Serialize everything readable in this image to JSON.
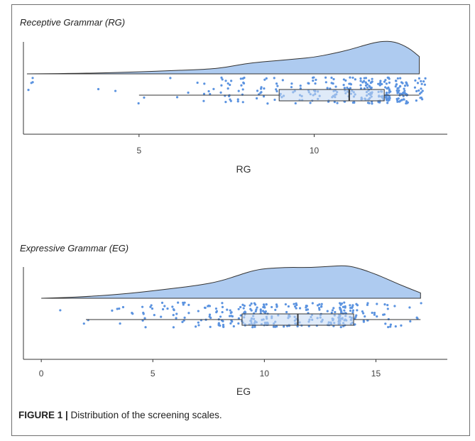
{
  "figure": {
    "caption_label": "FIGURE 1 |",
    "caption_text": " Distribution of the screening scales."
  },
  "colors": {
    "density_fill": "#aecbf0",
    "density_stroke": "#333333",
    "point_fill": "#5b93e0",
    "box_fill": "#c4d9f3",
    "box_stroke": "#333333",
    "axis": "#333333"
  },
  "chart_data": [
    {
      "type": "raincloud",
      "title": "Receptive Grammar (RG)",
      "xlabel": "RG",
      "ylabel": "",
      "xlim": [
        1.7,
        13.8
      ],
      "xticks": [
        5,
        10
      ],
      "grid": false,
      "density": {
        "x": [
          1.8,
          3,
          4,
          5,
          6,
          7,
          7.5,
          8,
          8.5,
          9,
          9.5,
          10,
          10.5,
          11,
          11.5,
          11.9,
          12.3,
          12.7,
          13
        ],
        "y": [
          0.0,
          0.01,
          0.03,
          0.06,
          0.1,
          0.14,
          0.2,
          0.3,
          0.36,
          0.4,
          0.45,
          0.5,
          0.6,
          0.72,
          0.88,
          0.98,
          0.97,
          0.78,
          0.52
        ]
      },
      "box": {
        "min": 5,
        "q1": 9,
        "median": 11,
        "q3": 12,
        "max": 13
      },
      "points_range": [
        1.8,
        13.5
      ]
    },
    {
      "type": "raincloud",
      "title": "Expressive Grammar (EG)",
      "xlabel": "EG",
      "ylabel": "",
      "xlim": [
        -0.8,
        18.2
      ],
      "xticks": [
        0,
        5,
        10,
        15
      ],
      "grid": false,
      "density": {
        "x": [
          0,
          1,
          2,
          3,
          4,
          5,
          6,
          7,
          8,
          9,
          9.5,
          10,
          11,
          12,
          13,
          13.5,
          14,
          15,
          16,
          17
        ],
        "y": [
          0.0,
          0.02,
          0.05,
          0.09,
          0.15,
          0.22,
          0.3,
          0.38,
          0.5,
          0.72,
          0.82,
          0.88,
          0.92,
          0.91,
          0.95,
          0.97,
          0.94,
          0.72,
          0.42,
          0.16
        ]
      },
      "box": {
        "min": 2,
        "q1": 9,
        "median": 11.5,
        "q3": 14,
        "max": 17
      },
      "points_range": [
        0,
        17.4
      ]
    }
  ]
}
